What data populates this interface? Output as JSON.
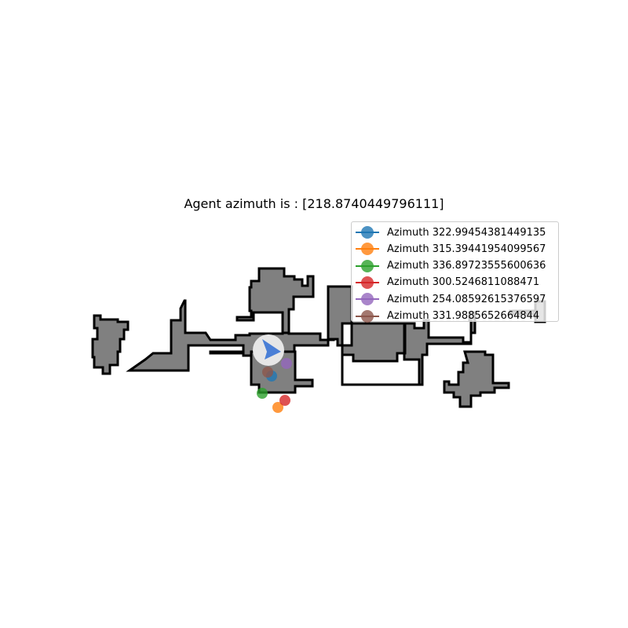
{
  "title": "Agent azimuth is : [218.8740449796111]",
  "colors": {
    "floor": "#808080",
    "wall": "#000000",
    "agent_halo": "#e6e6e6",
    "agent_arrow": "#4a7fd6"
  },
  "agent": {
    "azimuth": 218.8740449796111,
    "icon": "arrow-icon"
  },
  "waypoints": [
    {
      "label": "Azimuth 322.99454381449135",
      "color": "#1f77b4"
    },
    {
      "label": "Azimuth 315.39441954099567",
      "color": "#ff7f0e"
    },
    {
      "label": "Azimuth 336.89723555600636",
      "color": "#2ca02c"
    },
    {
      "label": "Azimuth 300.5246811088471",
      "color": "#d62728"
    },
    {
      "label": "Azimuth 254.08592615376597",
      "color": "#9467bd"
    },
    {
      "label": "Azimuth 331.9885652664844",
      "color": "#8c564b"
    }
  ]
}
